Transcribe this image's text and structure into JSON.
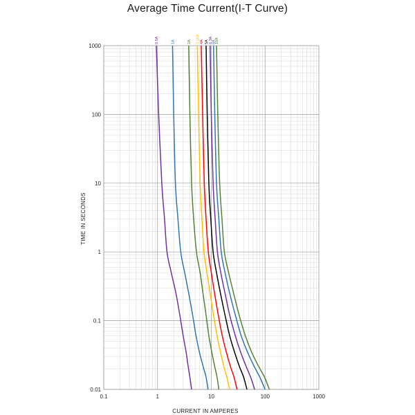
{
  "chart_data": {
    "type": "line",
    "title": "Average Time Current(I-T Curve)",
    "xlabel": "CURRENT  IN  AMPERES",
    "ylabel": "TIME  IN  SECONDS",
    "xscale": "log",
    "yscale": "log",
    "xlim": [
      0.1,
      1000
    ],
    "ylim": [
      0.01,
      1000
    ],
    "x_tick_labels": [
      "0.1",
      "1",
      "10",
      "100",
      "1000"
    ],
    "x_tick_values": [
      0.1,
      1,
      10,
      100,
      1000
    ],
    "y_tick_labels": [
      "0.01",
      "0.1",
      "1",
      "10",
      "100",
      "1000"
    ],
    "y_tick_values": [
      0.01,
      0.1,
      1,
      10,
      100,
      1000
    ],
    "grid": true,
    "series": [
      {
        "name": "0.5A",
        "color": "#7030a0",
        "x": [
          0.95,
          1.05,
          1.2,
          1.35,
          1.5,
          1.8,
          2.2,
          2.6,
          3.0,
          3.4,
          3.7,
          4.0,
          4.3
        ],
        "y": [
          1000,
          100,
          10,
          3,
          1,
          0.5,
          0.25,
          0.12,
          0.06,
          0.035,
          0.022,
          0.015,
          0.01
        ]
      },
      {
        "name": "1A",
        "color": "#2e75b6",
        "x": [
          1.9,
          2.0,
          2.15,
          2.4,
          2.7,
          3.2,
          3.8,
          4.5,
          5.2,
          6.0,
          7.0,
          8.0,
          8.7
        ],
        "y": [
          1000,
          100,
          10,
          3,
          1,
          0.5,
          0.25,
          0.12,
          0.06,
          0.035,
          0.022,
          0.015,
          0.01
        ]
      },
      {
        "name": "2A",
        "color": "#548235",
        "x": [
          3.8,
          4.0,
          4.3,
          4.7,
          5.3,
          6.2,
          7.0,
          8.0,
          9.0,
          10.2,
          11.5,
          12.8,
          13.8
        ],
        "y": [
          1000,
          100,
          10,
          3,
          1,
          0.5,
          0.25,
          0.12,
          0.06,
          0.035,
          0.022,
          0.015,
          0.01
        ]
      },
      {
        "name": "3.15A",
        "color": "#ffc000",
        "x": [
          5.5,
          5.8,
          6.2,
          6.7,
          7.3,
          8.3,
          9.5,
          11.0,
          12.8,
          14.8,
          17.0,
          19.5,
          22.0
        ],
        "y": [
          1000,
          100,
          10,
          3,
          1,
          0.5,
          0.25,
          0.12,
          0.06,
          0.035,
          0.022,
          0.015,
          0.01
        ]
      },
      {
        "name": "4A",
        "color": "#ff0000",
        "x": [
          6.5,
          6.9,
          7.4,
          8.0,
          8.8,
          10.0,
          11.5,
          13.5,
          16.0,
          19.0,
          22.5,
          26.5,
          30.0
        ],
        "y": [
          1000,
          100,
          10,
          3,
          1,
          0.5,
          0.25,
          0.12,
          0.06,
          0.035,
          0.022,
          0.015,
          0.01
        ]
      },
      {
        "name": "5A",
        "color": "#000000",
        "x": [
          8.0,
          8.4,
          9.0,
          9.8,
          10.8,
          12.5,
          14.8,
          18.0,
          22.0,
          27.0,
          33.0,
          40.0,
          46.0
        ],
        "y": [
          1000,
          100,
          10,
          3,
          1,
          0.5,
          0.25,
          0.12,
          0.06,
          0.035,
          0.022,
          0.015,
          0.01
        ]
      },
      {
        "name": "6.3A",
        "color": "#7030a0",
        "x": [
          9.5,
          10.0,
          10.8,
          11.8,
          13.0,
          15.0,
          18.0,
          22.0,
          28.0,
          35.0,
          44.0,
          54.0,
          64.0
        ],
        "y": [
          1000,
          100,
          10,
          3,
          1,
          0.5,
          0.25,
          0.12,
          0.06,
          0.035,
          0.022,
          0.015,
          0.01
        ]
      },
      {
        "name": "8A",
        "color": "#2e75b6",
        "x": [
          11.0,
          11.6,
          12.5,
          13.8,
          15.3,
          18.0,
          22.0,
          28.0,
          36.0,
          47.0,
          62.0,
          80.0,
          100.0
        ],
        "y": [
          1000,
          100,
          10,
          3,
          1,
          0.5,
          0.25,
          0.12,
          0.06,
          0.035,
          0.022,
          0.015,
          0.01
        ]
      },
      {
        "name": "10A",
        "color": "#548235",
        "x": [
          12.5,
          13.2,
          14.3,
          15.8,
          17.5,
          21.0,
          26.0,
          33.0,
          43.0,
          56.0,
          75.0,
          98.0,
          120.0
        ],
        "y": [
          1000,
          100,
          10,
          3,
          1,
          0.5,
          0.25,
          0.12,
          0.06,
          0.035,
          0.022,
          0.015,
          0.01
        ]
      }
    ]
  }
}
